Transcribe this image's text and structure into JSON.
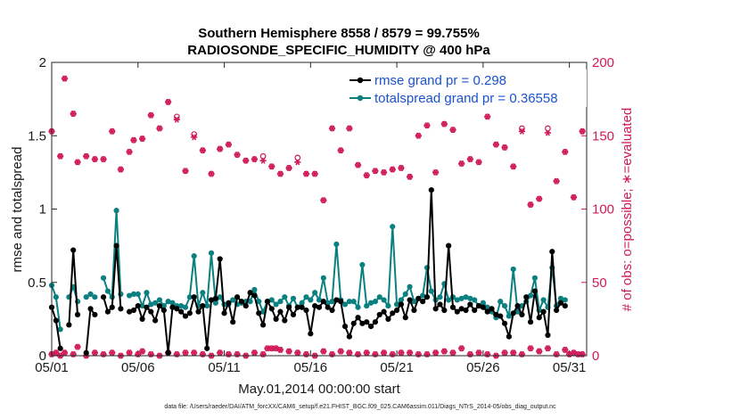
{
  "chart_data": {
    "type": "line",
    "title_line1": "Southern Hemisphere 8558 / 8579 = 99.755%",
    "title_line2": "RADIOSONDE_SPECIFIC_HUMIDITY @ 400 hPa",
    "xlabel": "May.01,2014 00:00:00 start",
    "ylabel_left": "rmse and totalspread",
    "ylabel_right": "# of obs: o=possible; ∗=evaluated",
    "footer": "data file: /Users/raeder/DAI/ATM_forcXX/CAM6_setup/f.e21.FHIST_BGC.f09_025.CAM6assim.011/Diags_NTrS_2014-05/obs_diag_output.nc",
    "x_ticks": [
      "05/01",
      "05/06",
      "05/11",
      "05/16",
      "05/21",
      "05/26",
      "05/31"
    ],
    "x_tick_days": [
      1,
      6,
      11,
      16,
      21,
      26,
      31
    ],
    "xlim": [
      1,
      32
    ],
    "y_left_ticks": [
      "0",
      "0.5",
      "1",
      "1.5",
      "2"
    ],
    "ylim_left": [
      0,
      2
    ],
    "y_right_ticks": [
      "0",
      "50",
      "100",
      "150",
      "200"
    ],
    "ylim_right": [
      0,
      200
    ],
    "colors": {
      "rmse": "#000000",
      "spread": "#0a8080",
      "obs": "#d01a5a",
      "legend_text": "#1a52d0"
    },
    "legend": [
      {
        "name": "rmse grand pr = 0.298",
        "series": "rmse"
      },
      {
        "name": "totalspread grand pr = 0.36558",
        "series": "spread"
      }
    ],
    "series_x_days": [
      1,
      1.25,
      1.5,
      1.75,
      2,
      2.25,
      2.5,
      2.75,
      3,
      3.25,
      3.5,
      3.75,
      4,
      4.25,
      4.5,
      4.75,
      5,
      5.25,
      5.5,
      5.75,
      6,
      6.25,
      6.5,
      6.75,
      7,
      7.25,
      7.5,
      7.75,
      8,
      8.25,
      8.5,
      8.75,
      9,
      9.25,
      9.5,
      9.75,
      10,
      10.25,
      10.5,
      10.75,
      11,
      11.25,
      11.5,
      11.75,
      12,
      12.25,
      12.5,
      12.75,
      13,
      13.25,
      13.5,
      13.75,
      14,
      14.25,
      14.5,
      14.75,
      15,
      15.25,
      15.5,
      15.75,
      16,
      16.25,
      16.5,
      16.75,
      17,
      17.25,
      17.5,
      17.75,
      18,
      18.25,
      18.5,
      18.75,
      19,
      19.25,
      19.5,
      19.75,
      20,
      20.25,
      20.5,
      20.75,
      21,
      21.25,
      21.5,
      21.75,
      22,
      22.25,
      22.5,
      22.75,
      23,
      23.25,
      23.5,
      23.75,
      24,
      24.25,
      24.5,
      24.75,
      25,
      25.25,
      25.5,
      25.75,
      26,
      26.25,
      26.5,
      26.75,
      27,
      27.25,
      27.5,
      27.75,
      28,
      28.25,
      28.5,
      28.75,
      29,
      29.25,
      29.5,
      29.75,
      30,
      30.25,
      30.5,
      30.75,
      31,
      31.25,
      31.5,
      31.75
    ],
    "series": [
      {
        "name": "rmse",
        "values": [
          0.33,
          0.24,
          0.05,
          null,
          0.21,
          0.72,
          0.28,
          null,
          0.02,
          0.32,
          0.28,
          null,
          0.4,
          0.3,
          0.33,
          0.75,
          0.32,
          null,
          0.3,
          0.31,
          0.34,
          0.25,
          0.33,
          0.3,
          0.24,
          0.34,
          0.31,
          0.02,
          0.33,
          0.32,
          0.3,
          0.27,
          0.29,
          0.4,
          0.3,
          0.34,
          0.05,
          0.38,
          0.39,
          0.66,
          0.29,
          0.36,
          0.23,
          0.4,
          0.37,
          0.34,
          0.43,
          0.41,
          0.29,
          0.21,
          0.37,
          0.32,
          0.25,
          0.3,
          0.24,
          0.33,
          0.28,
          0.33,
          0.33,
          0.31,
          0.15,
          0.34,
          0.33,
          0.37,
          0.33,
          0.31,
          0.38,
          0.37,
          0.2,
          0.13,
          0.22,
          0.26,
          0.22,
          0.23,
          0.2,
          0.23,
          0.28,
          0.3,
          0.25,
          0.29,
          0.31,
          0.35,
          0.26,
          0.38,
          0.31,
          0.39,
          0.37,
          0.4,
          1.13,
          0.32,
          0.35,
          0.31,
          0.75,
          0.33,
          0.3,
          0.32,
          0.31,
          0.35,
          0.31,
          0.34,
          0.33,
          0.3,
          0.32,
          0.28,
          0.27,
          0.22,
          0.13,
          0.29,
          0.34,
          0.28,
          0.4,
          0.23,
          0.44,
          0.26,
          0.3,
          0.14,
          0.71,
          0.31,
          0.36,
          0.34
        ],
        "color": "#000000"
      },
      {
        "name": "totalspread",
        "values": [
          0.48,
          0.4,
          0.18,
          null,
          0.4,
          0.47,
          0.37,
          null,
          0.4,
          0.42,
          0.4,
          null,
          0.53,
          0.44,
          0.4,
          0.99,
          0.42,
          null,
          0.41,
          0.42,
          0.42,
          0.34,
          0.43,
          0.35,
          0.36,
          0.38,
          0.34,
          0.37,
          0.36,
          0.34,
          0.34,
          0.33,
          0.4,
          0.68,
          0.34,
          0.43,
          0.34,
          0.7,
          0.36,
          0.4,
          0.35,
          0.35,
          0.38,
          0.35,
          0.36,
          0.37,
          0.37,
          0.45,
          0.37,
          0.3,
          0.37,
          0.38,
          0.35,
          0.37,
          0.4,
          0.34,
          0.39,
          0.33,
          0.36,
          0.4,
          0.38,
          0.43,
          0.38,
          0.53,
          0.36,
          0.37,
          0.76,
          0.38,
          0.35,
          0.37,
          0.37,
          0.33,
          0.62,
          0.34,
          0.36,
          0.37,
          0.4,
          0.38,
          0.34,
          0.88,
          0.35,
          0.38,
          0.42,
          0.47,
          0.37,
          0.39,
          0.41,
          0.6,
          0.44,
          0.38,
          0.4,
          0.49,
          0.38,
          0.4,
          0.38,
          0.39,
          0.4,
          0.39,
          0.38,
          0.34,
          0.36,
          0.33,
          0.3,
          0.26,
          0.37,
          0.34,
          0.27,
          0.59,
          0.3,
          0.34,
          0.37,
          0.41,
          0.53,
          0.31,
          0.38,
          0.33,
          0.6,
          0.34,
          0.39,
          0.38
        ],
        "color": "#0a8080"
      }
    ],
    "obs_possible": {
      "x_days": [
        1.0,
        1.5,
        1.75,
        2.25,
        2.5,
        3.0,
        3.5,
        4.0,
        4.5,
        5.0,
        5.5,
        5.75,
        6.25,
        6.75,
        7.25,
        7.75,
        8.25,
        8.75,
        9.25,
        9.75,
        10.25,
        10.75,
        11.25,
        11.75,
        12.25,
        12.75,
        13.25,
        13.75,
        14.25,
        14.75,
        15.25,
        15.75,
        16.25,
        16.75,
        17.25,
        17.75,
        18.25,
        18.75,
        19.25,
        19.75,
        20.25,
        20.75,
        21.25,
        21.75,
        22.25,
        22.75,
        23.25,
        23.75,
        24.25,
        24.75,
        25.25,
        25.75,
        26.25,
        26.75,
        27.25,
        27.75,
        28.25,
        28.75,
        29.25,
        29.75,
        30.25,
        30.75,
        31.25,
        31.75
      ],
      "values": [
        153,
        136,
        189,
        165,
        132,
        136,
        134,
        134,
        153,
        127,
        139,
        147,
        148,
        164,
        155,
        173,
        163,
        126,
        151,
        140,
        124,
        141,
        144,
        137,
        133,
        134,
        136,
        129,
        124,
        128,
        135,
        124,
        124,
        106,
        155,
        140,
        155,
        130,
        123,
        126,
        125,
        127,
        128,
        122,
        150,
        157,
        125,
        158,
        154,
        131,
        134,
        132,
        163,
        144,
        142,
        129,
        155,
        103,
        107,
        155,
        119,
        139,
        108,
        153
      ],
      "color": "#d01a5a"
    },
    "obs_evaluated": {
      "values": [
        153,
        136,
        189,
        165,
        132,
        136,
        134,
        134,
        153,
        127,
        139,
        147,
        148,
        164,
        155,
        173,
        161,
        126,
        149,
        140,
        124,
        141,
        144,
        137,
        133,
        134,
        133,
        129,
        124,
        128,
        132,
        124,
        124,
        106,
        155,
        140,
        155,
        130,
        123,
        126,
        125,
        127,
        128,
        122,
        150,
        157,
        125,
        158,
        154,
        131,
        134,
        132,
        163,
        144,
        142,
        129,
        153,
        103,
        107,
        152,
        119,
        139,
        108,
        153
      ],
      "color": "#d01a5a"
    },
    "obs_low": {
      "x_days": [
        1.0,
        1.25,
        1.5,
        1.75,
        2.25,
        2.5,
        3.0,
        3.5,
        4.0,
        4.5,
        5.0,
        5.5,
        6.0,
        6.25,
        6.75,
        7.25,
        7.75,
        8.25,
        8.75,
        9.25,
        9.75,
        10.25,
        10.75,
        11.25,
        11.75,
        12.25,
        12.75,
        13.25,
        13.5,
        13.75,
        14.0,
        14.25,
        14.75,
        15.25,
        15.75,
        16.25,
        16.75,
        17.25,
        17.75,
        18.25,
        18.75,
        19.25,
        19.75,
        20.25,
        20.75,
        21.25,
        21.75,
        22.25,
        22.75,
        23.25,
        23.75,
        24.25,
        24.75,
        25.25,
        25.75,
        26.25,
        26.75,
        27.25,
        27.75,
        28.25,
        28.75,
        29.25,
        29.75,
        30.25,
        30.75,
        31.0,
        31.25,
        31.5,
        31.75
      ],
      "values": [
        1,
        2,
        0,
        2,
        1,
        6,
        0,
        2,
        1,
        2,
        0,
        2,
        1,
        3,
        1,
        0,
        2,
        1,
        2,
        2,
        1,
        0,
        2,
        1,
        1,
        0,
        2,
        1,
        5,
        5,
        5,
        4,
        3,
        2,
        1,
        0,
        3,
        1,
        3,
        2,
        1,
        2,
        1,
        2,
        1,
        2,
        2,
        1,
        1,
        2,
        3,
        2,
        5,
        1,
        2,
        1,
        0,
        2,
        2,
        1,
        5,
        3,
        5,
        1,
        4,
        1,
        2,
        1,
        1
      ],
      "color": "#d01a5a"
    }
  }
}
